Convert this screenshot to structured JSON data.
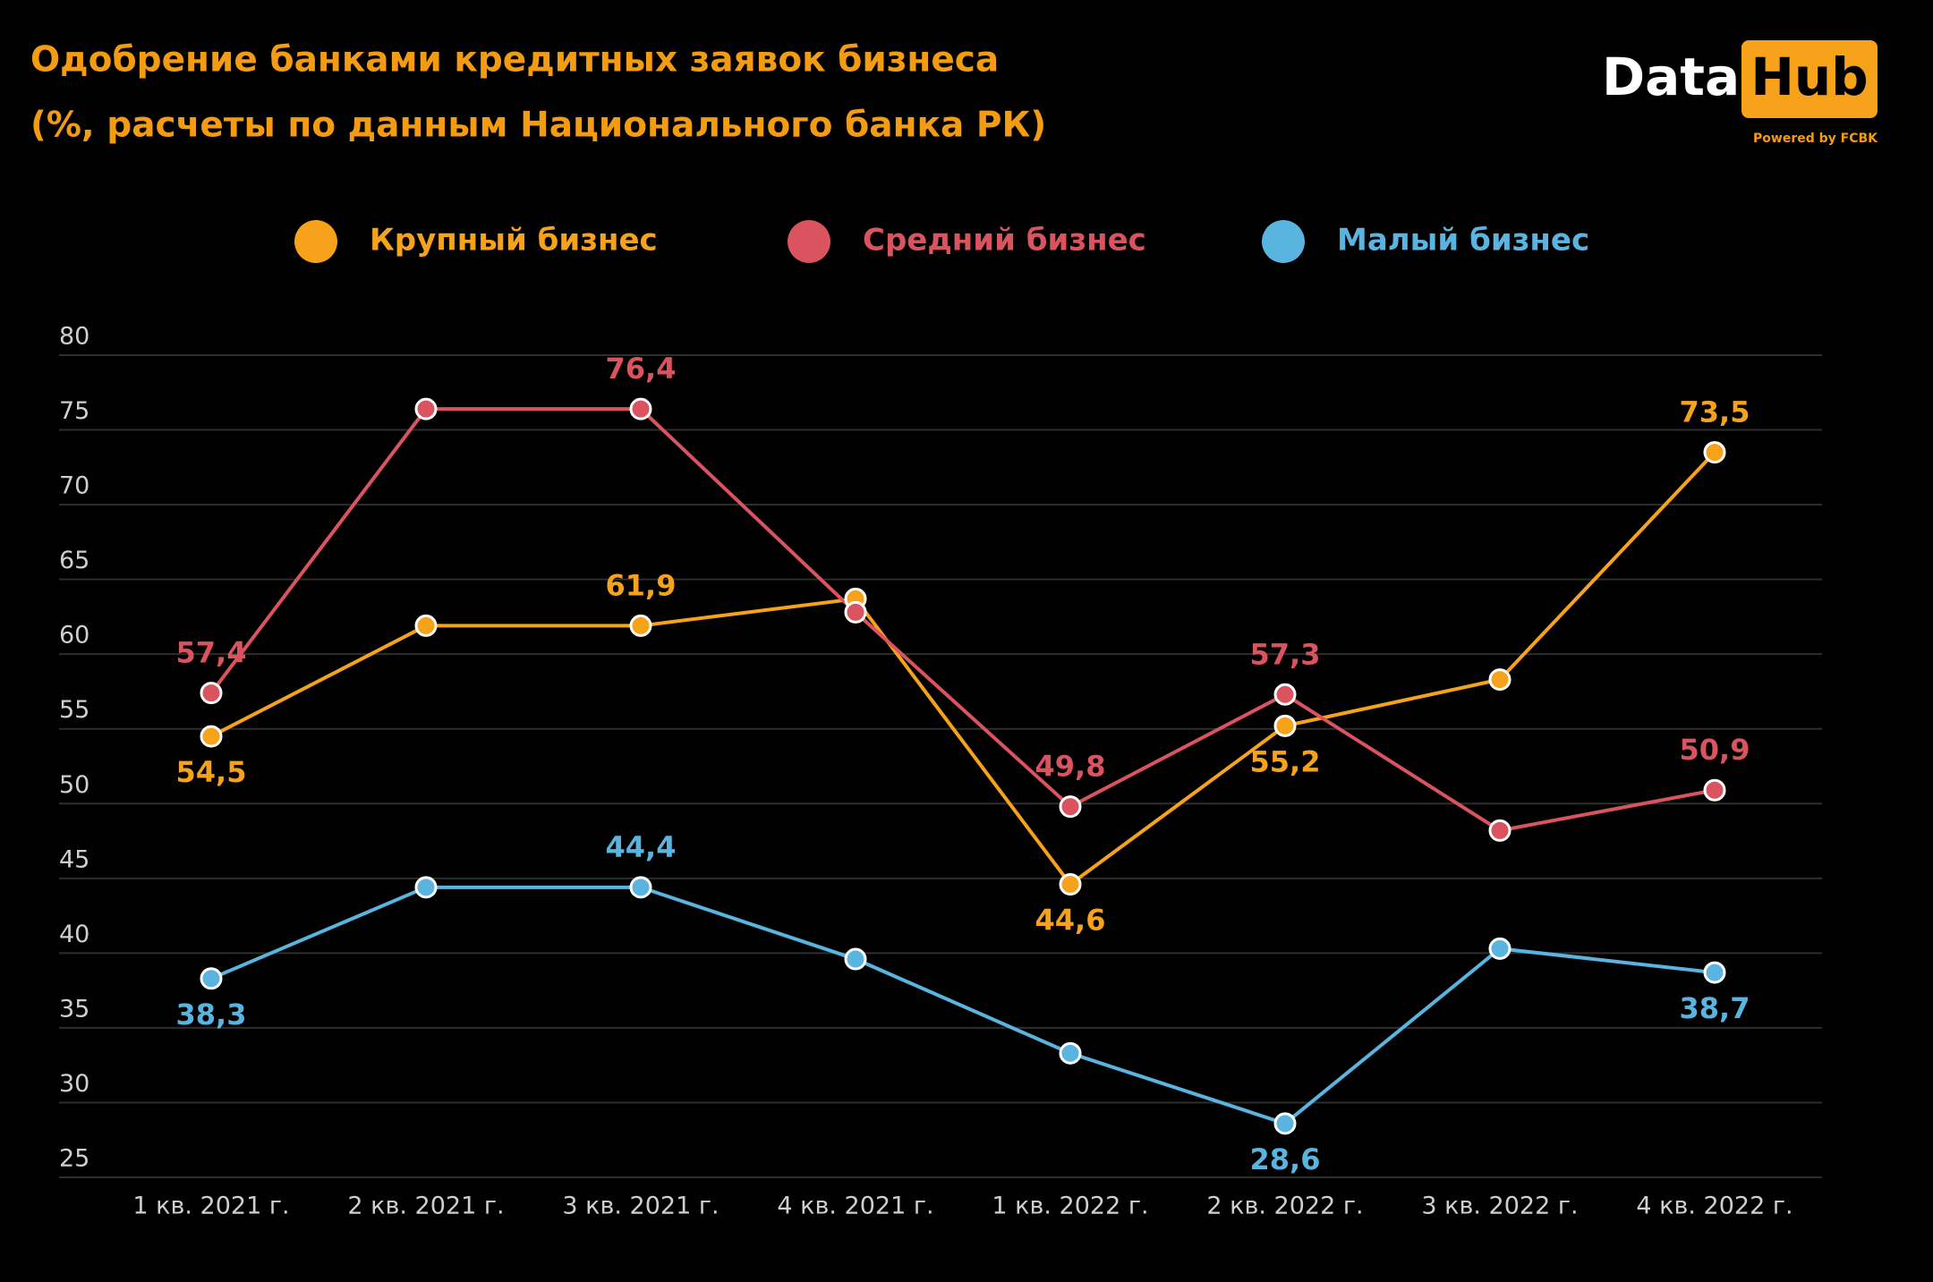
{
  "chart_data": {
    "type": "line",
    "title": "Одобрение банками кредитных заявок бизнеса",
    "subtitle": "(%, расчеты по данным Национального банка РК)",
    "categories": [
      "1 кв. 2021 г.",
      "2 кв. 2021 г.",
      "3 кв. 2021 г.",
      "4 кв. 2021 г.",
      "1 кв. 2022 г.",
      "2 кв. 2022 г.",
      "3 кв. 2022 г.",
      "4 кв. 2022 г."
    ],
    "series": [
      {
        "name": "Крупный бизнес",
        "color": "#f7a21b",
        "values": [
          54.5,
          61.9,
          61.9,
          63.7,
          44.6,
          55.2,
          58.3,
          73.5
        ],
        "value_labels": [
          "54,5",
          null,
          "61,9",
          null,
          "44,6",
          "55,2",
          null,
          "73,5"
        ]
      },
      {
        "name": "Средний бизнес",
        "color": "#d9545f",
        "values": [
          57.4,
          76.4,
          76.4,
          62.8,
          49.8,
          57.3,
          48.2,
          50.9
        ],
        "value_labels": [
          "57,4",
          null,
          "76,4",
          null,
          "49,8",
          "57,3",
          null,
          "50,9"
        ]
      },
      {
        "name": "Малый бизнес",
        "color": "#5ab4e0",
        "values": [
          38.3,
          44.4,
          44.4,
          39.6,
          33.3,
          28.6,
          40.3,
          38.7
        ],
        "value_labels": [
          "38,3",
          null,
          "44,4",
          null,
          null,
          "28,6",
          null,
          "38,7"
        ]
      }
    ],
    "ylim": [
      25,
      80
    ],
    "yticks": [
      25,
      30,
      35,
      40,
      45,
      50,
      55,
      60,
      65,
      70,
      75,
      80
    ],
    "grid": true
  },
  "logo": {
    "word1": "Data",
    "word2": "Hub",
    "tagline": "Powered by FCBK"
  }
}
